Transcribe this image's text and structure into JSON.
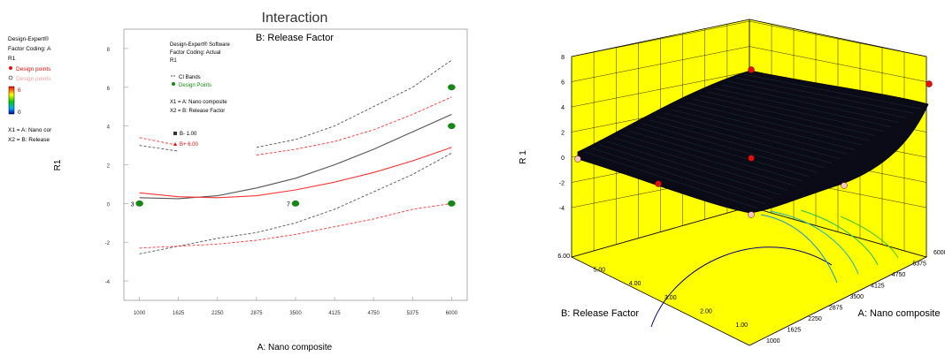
{
  "left_panel": {
    "title": "Interaction",
    "subtitle": "B: Release Factor",
    "side_legend": {
      "line1": "Design-Expert®",
      "line2": "Factor Coding: A",
      "line3": "R1",
      "item_design_points": "Design points",
      "item_design_points_faded": "Design points",
      "scale_high": "6",
      "scale_low": "0",
      "x1_def": "X1 = A: Nano cor",
      "x2_def": "X2 = B: Release"
    },
    "inner_legend": {
      "software": "Design-Expert® Software",
      "coding": "Factor Coding: Actual",
      "response": "R1",
      "ci_bands": "CI Bands",
      "design_points": "Design Points",
      "x1": "X1 = A: Nano composite",
      "x2": "X2 = B: Release Factor",
      "b_low": "B- 1.00",
      "b_high": "B+ 6.00"
    },
    "point_labels": [
      "3",
      "7"
    ]
  },
  "right_panel": {
    "z_label": "R 1",
    "x_label": "A: Nano composite",
    "y_label": "B: Release Factor"
  },
  "colors": {
    "low_series": "#555555",
    "high_series": "#ff3333",
    "design_point": "#108a10",
    "surface_bg": "#ffff00",
    "surface": "#0a0a14",
    "contour": "#1a8fd0"
  },
  "chart_data": [
    {
      "type": "line",
      "title": "Interaction",
      "subtitle": "B: Release Factor",
      "xlabel": "A: Nano composite",
      "ylabel": "R1",
      "xlim": [
        750,
        6250
      ],
      "ylim": [
        -5,
        9
      ],
      "x_ticks": [
        1000,
        1625,
        2250,
        2875,
        3500,
        4125,
        4750,
        5375,
        6000
      ],
      "y_ticks": [
        -4,
        -2,
        0,
        2,
        4,
        6,
        8
      ],
      "grid": true,
      "series": [
        {
          "name": "B- 1.00",
          "x": [
            1000,
            1625,
            2250,
            2875,
            3500,
            4125,
            4750,
            5375,
            6000
          ],
          "mean": [
            0.3,
            0.25,
            0.4,
            0.8,
            1.3,
            2.0,
            2.8,
            3.7,
            4.6
          ],
          "ci_upper": [
            3.0,
            2.7,
            null,
            2.9,
            3.3,
            4.0,
            5.0,
            6.0,
            7.4
          ],
          "ci_lower": [
            -2.6,
            -2.2,
            -1.8,
            -1.5,
            -1.0,
            -0.3,
            0.6,
            1.5,
            2.6
          ]
        },
        {
          "name": "B+ 6.00",
          "x": [
            1000,
            1625,
            2250,
            2875,
            3500,
            4125,
            4750,
            5375,
            6000
          ],
          "mean": [
            0.55,
            0.35,
            0.3,
            0.4,
            0.7,
            1.1,
            1.6,
            2.2,
            2.9
          ],
          "ci_upper": [
            3.4,
            3.0,
            null,
            2.5,
            2.8,
            3.2,
            3.8,
            4.6,
            5.5
          ],
          "ci_lower": [
            -2.3,
            -2.2,
            -2.1,
            -1.9,
            -1.6,
            -1.2,
            -0.8,
            -0.3,
            0.0
          ]
        }
      ],
      "design_points": [
        {
          "x": 1000,
          "y": 0,
          "label": "3"
        },
        {
          "x": 3500,
          "y": 0,
          "label": "7"
        },
        {
          "x": 6000,
          "y": 0
        },
        {
          "x": 6000,
          "y": 4
        },
        {
          "x": 6000,
          "y": 6
        }
      ]
    },
    {
      "type": "surface",
      "xlabel": "A: Nano composite",
      "ylabel": "B: Release Factor",
      "zlabel": "R 1",
      "x_ticks": [
        1000,
        1625,
        2250,
        2875,
        3500,
        4125,
        4750,
        5375,
        6000
      ],
      "y_ticks": [
        "1.00",
        "2.00",
        "3.00",
        "4.00",
        "5.00",
        "6.00"
      ],
      "z_ticks": [
        -4,
        -2,
        0,
        2,
        4,
        6,
        8
      ],
      "zlim": [
        -4,
        8
      ]
    }
  ]
}
